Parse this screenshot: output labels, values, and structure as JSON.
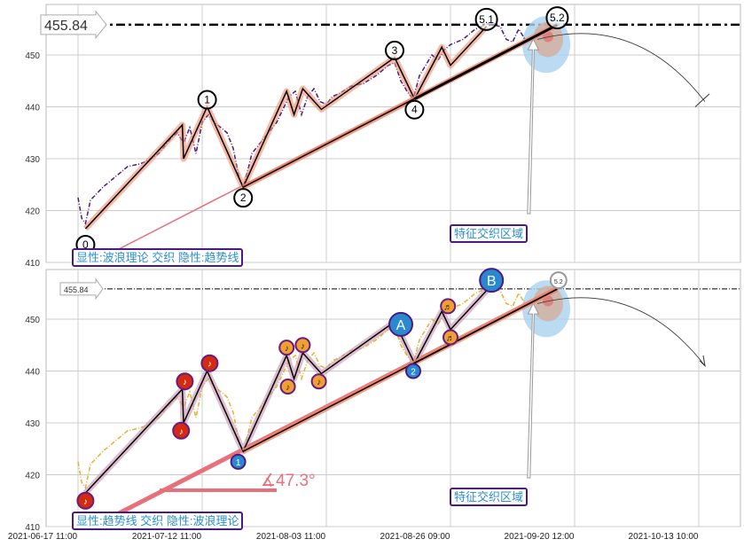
{
  "chart_data": [
    {
      "type": "line",
      "title": "",
      "label": "显性:波浪理论 交织 隐性:趋势线",
      "zone_label": "特征交织区域",
      "ylim": [
        410,
        458
      ],
      "yticks": [
        410,
        420,
        430,
        440,
        450
      ],
      "xticks": [
        "2021-06-17 11:00",
        "2021-07-12 11:00",
        "2021-08-03 11:00",
        "2021-08-26 09:00",
        "2021-09-20 12:00",
        "2021-10-13 10:00"
      ],
      "level_line": 455.84,
      "level_label": "455.84",
      "price_color": "#4b1a80",
      "waves": [
        {
          "label": "0",
          "t": 0.06,
          "price": 416.5
        },
        {
          "label": "1",
          "t": 1.04,
          "price": 440
        },
        {
          "label": "2",
          "t": 1.33,
          "price": 424.5
        },
        {
          "label": "3",
          "t": 2.55,
          "price": 449.5
        },
        {
          "label": "4",
          "t": 2.71,
          "price": 441.5
        },
        {
          "label": "5.1",
          "t": 3.29,
          "price": 455.5
        },
        {
          "label": "5.2",
          "t": 3.86,
          "price": 455.8
        }
      ]
    },
    {
      "type": "line",
      "label": "显性:趋势线 交织 隐性:波浪理论",
      "zone_label": "特征交织区域",
      "angle_label": "∡47.3°",
      "ylim": [
        410,
        458
      ],
      "yticks": [
        410,
        420,
        430,
        440,
        450
      ],
      "level_line": 455.84,
      "level_label": "455.84",
      "price_color": "#e8b030",
      "markers": [
        {
          "kind": "red",
          "glyph": "♪",
          "t": 0.06,
          "price": 415
        },
        {
          "kind": "red",
          "glyph": "♪",
          "t": 0.86,
          "price": 438
        },
        {
          "kind": "red",
          "glyph": "♪",
          "t": 0.83,
          "price": 428.5
        },
        {
          "kind": "red",
          "glyph": "♪",
          "t": 1.06,
          "price": 441.5
        },
        {
          "kind": "orange",
          "glyph": "♪",
          "t": 1.68,
          "price": 444.5
        },
        {
          "kind": "orange",
          "glyph": "♪",
          "t": 1.81,
          "price": 445
        },
        {
          "kind": "orange",
          "glyph": "♪",
          "t": 1.69,
          "price": 437
        },
        {
          "kind": "orange",
          "glyph": "♪",
          "t": 1.94,
          "price": 438
        },
        {
          "kind": "orange",
          "glyph": "♬",
          "t": 2.98,
          "price": 452.5
        },
        {
          "kind": "orange",
          "glyph": "♬",
          "t": 3.0,
          "price": 446.5
        },
        {
          "kind": "blue",
          "glyph": "A",
          "t": 2.6,
          "price": 449
        },
        {
          "kind": "blue",
          "glyph": "B",
          "t": 3.33,
          "price": 457.5
        },
        {
          "kind": "blue-small",
          "glyph": "1",
          "t": 1.29,
          "price": 422.5
        },
        {
          "kind": "blue-small",
          "glyph": "2",
          "t": 2.7,
          "price": 440
        },
        {
          "kind": "white",
          "glyph": "5.2",
          "t": 3.87,
          "price": 457.5
        }
      ]
    }
  ],
  "price_series": {
    "t": [
      0.0,
      0.03,
      0.06,
      0.1,
      0.2,
      0.3,
      0.4,
      0.5,
      0.55,
      0.65,
      0.75,
      0.8,
      0.85,
      0.9,
      0.95,
      1.0,
      1.05,
      1.1,
      1.2,
      1.25,
      1.3,
      1.33,
      1.37,
      1.4,
      1.5,
      1.6,
      1.7,
      1.75,
      1.8,
      1.85,
      1.9,
      1.95,
      2.0,
      2.05,
      2.1,
      2.2,
      2.3,
      2.4,
      2.5,
      2.55,
      2.6,
      2.65,
      2.7,
      2.75,
      2.8,
      2.85,
      2.9,
      2.95,
      3.0,
      3.1,
      3.2,
      3.3,
      3.4,
      3.45,
      3.5,
      3.55,
      3.6
    ],
    "price": [
      422.5,
      418.5,
      417.5,
      422,
      424.5,
      426.5,
      428.5,
      429,
      429.5,
      431,
      434,
      435,
      433,
      436,
      431,
      437,
      438.5,
      437,
      435,
      432,
      426,
      424.5,
      428,
      431,
      434,
      437,
      442,
      443,
      438.5,
      442,
      443.5,
      441,
      440.5,
      442,
      442.5,
      444,
      444.5,
      446,
      448,
      448.5,
      445,
      443,
      441.5,
      446,
      448,
      450,
      449,
      451,
      452,
      453,
      455,
      456,
      455.5,
      453,
      452.5,
      455,
      453
    ]
  },
  "colors": {
    "wave": "#f08a6a",
    "trend": "#e8707a",
    "zone": "#a9d2ee",
    "grid": "#cccccc"
  }
}
